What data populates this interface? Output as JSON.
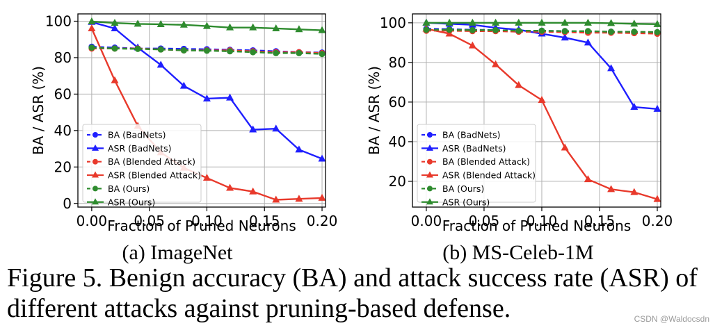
{
  "chart_data": [
    {
      "type": "line",
      "subcaption": "(a) ImageNet",
      "xlabel": "Fraction of Pruned Neurons",
      "ylabel": "BA / ASR (%)",
      "xlim": [
        -0.012,
        0.203
      ],
      "ylim": [
        -2,
        104
      ],
      "xticks": [
        0.0,
        0.05,
        0.1,
        0.15,
        0.2
      ],
      "xtick_labels": [
        "0.00",
        "0.05",
        "0.10",
        "0.15",
        "0.20"
      ],
      "yticks": [
        0,
        20,
        40,
        60,
        80,
        100
      ],
      "ytick_labels": [
        "0",
        "20",
        "40",
        "60",
        "80",
        "100"
      ],
      "grid": true,
      "legend_position": "lower-left",
      "x": [
        0.0,
        0.02,
        0.04,
        0.06,
        0.08,
        0.1,
        0.12,
        0.14,
        0.16,
        0.18,
        0.2
      ],
      "series": [
        {
          "name": "BA (BadNets)",
          "color": "#1f1fff",
          "marker": "circle",
          "dashed": true,
          "values": [
            86,
            85.5,
            85,
            85,
            84.8,
            84.6,
            84.3,
            84,
            83.5,
            83,
            82.8
          ]
        },
        {
          "name": "ASR (BadNets)",
          "color": "#1f1fff",
          "marker": "triangle",
          "dashed": false,
          "values": [
            99.5,
            96,
            85.5,
            76,
            64.5,
            57.5,
            58,
            40.5,
            41,
            29.5,
            24.5
          ]
        },
        {
          "name": "BA (Blended Attack)",
          "color": "#e8392b",
          "marker": "circle",
          "dashed": true,
          "values": [
            85,
            85,
            85,
            84.5,
            84,
            84,
            84,
            83.5,
            83,
            83,
            82.5
          ]
        },
        {
          "name": "ASR (Blended Attack)",
          "color": "#e8392b",
          "marker": "triangle",
          "dashed": false,
          "values": [
            96,
            67.5,
            42.5,
            28,
            19.5,
            14,
            8.5,
            6.5,
            2,
            2.5,
            3
          ]
        },
        {
          "name": "BA (Ours)",
          "color": "#2e8b2e",
          "marker": "circle",
          "dashed": true,
          "values": [
            85.5,
            85,
            84.8,
            84.5,
            84,
            83.8,
            83.5,
            83,
            82.5,
            82.5,
            82
          ]
        },
        {
          "name": "ASR (Ours)",
          "color": "#2e8b2e",
          "marker": "triangle",
          "dashed": false,
          "values": [
            99.8,
            99,
            98.5,
            98.3,
            98,
            97.3,
            96.5,
            96.5,
            96,
            95.5,
            95
          ]
        }
      ]
    },
    {
      "type": "line",
      "subcaption": "(b) MS-Celeb-1M",
      "xlabel": "Fraction of Pruned Neurons",
      "ylabel": "BA / ASR (%)",
      "xlim": [
        -0.012,
        0.203
      ],
      "ylim": [
        7,
        104.5
      ],
      "xticks": [
        0.0,
        0.05,
        0.1,
        0.15,
        0.2
      ],
      "xtick_labels": [
        "0.00",
        "0.05",
        "0.10",
        "0.15",
        "0.20"
      ],
      "yticks": [
        20,
        40,
        60,
        80,
        100
      ],
      "ytick_labels": [
        "20",
        "40",
        "60",
        "80",
        "100"
      ],
      "grid": true,
      "legend_position": "lower-left",
      "x": [
        0.0,
        0.02,
        0.04,
        0.06,
        0.08,
        0.1,
        0.12,
        0.14,
        0.16,
        0.18,
        0.2
      ],
      "series": [
        {
          "name": "BA (BadNets)",
          "color": "#1f1fff",
          "marker": "circle",
          "dashed": true,
          "values": [
            97,
            96.8,
            96.5,
            96.3,
            96,
            96,
            95.8,
            95.5,
            95.5,
            95.2,
            95
          ]
        },
        {
          "name": "ASR (BadNets)",
          "color": "#1f1fff",
          "marker": "triangle",
          "dashed": false,
          "values": [
            100,
            99.5,
            99,
            97.5,
            96.5,
            94.5,
            92.5,
            90,
            77,
            57.5,
            56.5
          ]
        },
        {
          "name": "BA (Blended Attack)",
          "color": "#e8392b",
          "marker": "circle",
          "dashed": true,
          "values": [
            96,
            96,
            95.8,
            95.8,
            95.5,
            95.5,
            95.3,
            95,
            95,
            94.8,
            94.5
          ]
        },
        {
          "name": "ASR (Blended Attack)",
          "color": "#e8392b",
          "marker": "triangle",
          "dashed": false,
          "values": [
            97,
            94.5,
            88.5,
            79,
            68.5,
            61,
            37,
            21,
            16,
            14.5,
            11
          ]
        },
        {
          "name": "BA (Ours)",
          "color": "#2e8b2e",
          "marker": "circle",
          "dashed": true,
          "values": [
            96.5,
            96.5,
            96.3,
            96.3,
            96,
            96,
            95.8,
            95.8,
            95.5,
            95.5,
            95.3
          ]
        },
        {
          "name": "ASR (Ours)",
          "color": "#2e8b2e",
          "marker": "triangle",
          "dashed": false,
          "values": [
            100,
            100,
            100,
            100,
            100,
            100,
            100,
            100,
            99.8,
            99.5,
            99.3
          ]
        }
      ]
    }
  ],
  "figure_caption": "Figure 5. Benign accuracy (BA) and attack success rate (ASR) of different attacks against pruning-based defense.",
  "watermark": "CSDN @Waldocsdn"
}
